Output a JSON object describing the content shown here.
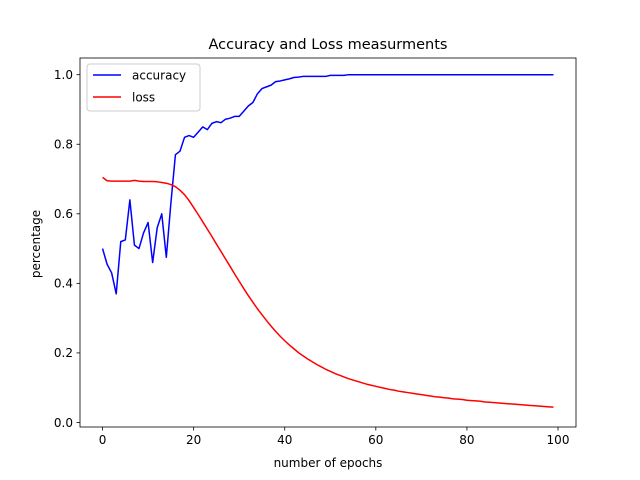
{
  "chart_data": {
    "type": "line",
    "title": "Accuracy and Loss measurments",
    "xlabel": "number of epochs",
    "ylabel": "percentage",
    "xlim": [
      -4.95,
      103.95
    ],
    "ylim": [
      -0.013,
      1.048
    ],
    "xticks": [
      0,
      20,
      40,
      60,
      80,
      100
    ],
    "yticks": [
      0.0,
      0.2,
      0.4,
      0.6,
      0.8,
      1.0
    ],
    "xtick_labels": [
      "0",
      "20",
      "40",
      "60",
      "80",
      "100"
    ],
    "ytick_labels": [
      "0.0",
      "0.2",
      "0.4",
      "0.6",
      "0.8",
      "1.0"
    ],
    "grid": false,
    "legend_position": "top-left",
    "series": [
      {
        "name": "accuracy",
        "color": "#0000ff",
        "x": [
          0,
          1,
          2,
          3,
          4,
          5,
          6,
          7,
          8,
          9,
          10,
          11,
          12,
          13,
          14,
          15,
          16,
          17,
          18,
          19,
          20,
          21,
          22,
          23,
          24,
          25,
          26,
          27,
          28,
          29,
          30,
          31,
          32,
          33,
          34,
          35,
          36,
          37,
          38,
          39,
          40,
          41,
          42,
          43,
          44,
          45,
          46,
          47,
          48,
          49,
          50,
          51,
          52,
          53,
          54,
          55,
          56,
          57,
          58,
          59,
          60,
          61,
          62,
          63,
          64,
          65,
          66,
          67,
          68,
          69,
          70,
          71,
          72,
          73,
          74,
          75,
          76,
          77,
          78,
          79,
          80,
          81,
          82,
          83,
          84,
          85,
          86,
          87,
          88,
          89,
          90,
          91,
          92,
          93,
          94,
          95,
          96,
          97,
          98,
          99
        ],
        "values": [
          0.5,
          0.455,
          0.43,
          0.37,
          0.52,
          0.525,
          0.64,
          0.51,
          0.5,
          0.545,
          0.575,
          0.46,
          0.56,
          0.6,
          0.475,
          0.63,
          0.77,
          0.78,
          0.82,
          0.825,
          0.82,
          0.835,
          0.85,
          0.842,
          0.86,
          0.865,
          0.862,
          0.872,
          0.875,
          0.88,
          0.88,
          0.895,
          0.91,
          0.92,
          0.945,
          0.96,
          0.965,
          0.97,
          0.98,
          0.982,
          0.985,
          0.988,
          0.992,
          0.993,
          0.995,
          0.995,
          0.995,
          0.995,
          0.995,
          0.995,
          0.998,
          0.998,
          0.998,
          0.998,
          1.0,
          1.0,
          1.0,
          1.0,
          1.0,
          1.0,
          1.0,
          1.0,
          1.0,
          1.0,
          1.0,
          1.0,
          1.0,
          1.0,
          1.0,
          1.0,
          1.0,
          1.0,
          1.0,
          1.0,
          1.0,
          1.0,
          1.0,
          1.0,
          1.0,
          1.0,
          1.0,
          1.0,
          1.0,
          1.0,
          1.0,
          1.0,
          1.0,
          1.0,
          1.0,
          1.0,
          1.0,
          1.0,
          1.0,
          1.0,
          1.0,
          1.0,
          1.0,
          1.0,
          1.0,
          1.0
        ]
      },
      {
        "name": "loss",
        "color": "#ff0000",
        "x": [
          0,
          1,
          2,
          3,
          4,
          5,
          6,
          7,
          8,
          9,
          10,
          11,
          12,
          13,
          14,
          15,
          16,
          17,
          18,
          19,
          20,
          21,
          22,
          23,
          24,
          25,
          26,
          27,
          28,
          29,
          30,
          31,
          32,
          33,
          34,
          35,
          36,
          37,
          38,
          39,
          40,
          41,
          42,
          43,
          44,
          45,
          46,
          47,
          48,
          49,
          50,
          51,
          52,
          53,
          54,
          55,
          56,
          57,
          58,
          59,
          60,
          61,
          62,
          63,
          64,
          65,
          66,
          67,
          68,
          69,
          70,
          71,
          72,
          73,
          74,
          75,
          76,
          77,
          78,
          79,
          80,
          81,
          82,
          83,
          84,
          85,
          86,
          87,
          88,
          89,
          90,
          91,
          92,
          93,
          94,
          95,
          96,
          97,
          98,
          99
        ],
        "values": [
          0.705,
          0.695,
          0.694,
          0.694,
          0.694,
          0.694,
          0.694,
          0.696,
          0.694,
          0.693,
          0.693,
          0.693,
          0.692,
          0.69,
          0.688,
          0.684,
          0.678,
          0.668,
          0.655,
          0.638,
          0.618,
          0.598,
          0.577,
          0.556,
          0.535,
          0.513,
          0.492,
          0.47,
          0.449,
          0.427,
          0.406,
          0.385,
          0.365,
          0.346,
          0.327,
          0.31,
          0.293,
          0.277,
          0.262,
          0.248,
          0.235,
          0.223,
          0.212,
          0.201,
          0.192,
          0.183,
          0.175,
          0.167,
          0.16,
          0.153,
          0.147,
          0.141,
          0.136,
          0.131,
          0.126,
          0.122,
          0.118,
          0.114,
          0.11,
          0.107,
          0.104,
          0.101,
          0.098,
          0.095,
          0.093,
          0.09,
          0.088,
          0.086,
          0.084,
          0.082,
          0.08,
          0.078,
          0.076,
          0.074,
          0.073,
          0.071,
          0.07,
          0.068,
          0.067,
          0.066,
          0.064,
          0.063,
          0.062,
          0.061,
          0.059,
          0.058,
          0.057,
          0.056,
          0.055,
          0.054,
          0.053,
          0.052,
          0.051,
          0.05,
          0.049,
          0.048,
          0.047,
          0.046,
          0.045,
          0.044
        ]
      }
    ]
  }
}
